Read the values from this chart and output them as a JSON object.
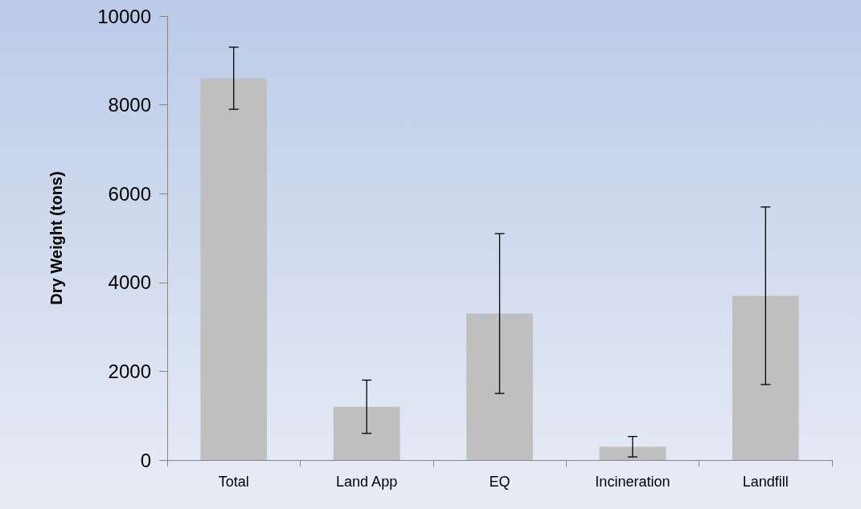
{
  "chart_data": {
    "type": "bar",
    "ylabel": "Dry Weight (tons)",
    "categories": [
      "Total",
      "Land App",
      "EQ",
      "Incineration",
      "Landfill"
    ],
    "values": [
      8600,
      1200,
      3300,
      300,
      3700
    ],
    "errors": [
      700,
      600,
      1800,
      230,
      2000
    ],
    "color": "#bfbfbf",
    "ylim": [
      0,
      10000
    ],
    "yticks": [
      0,
      2000,
      4000,
      6000,
      8000,
      10000
    ],
    "grid": false
  }
}
